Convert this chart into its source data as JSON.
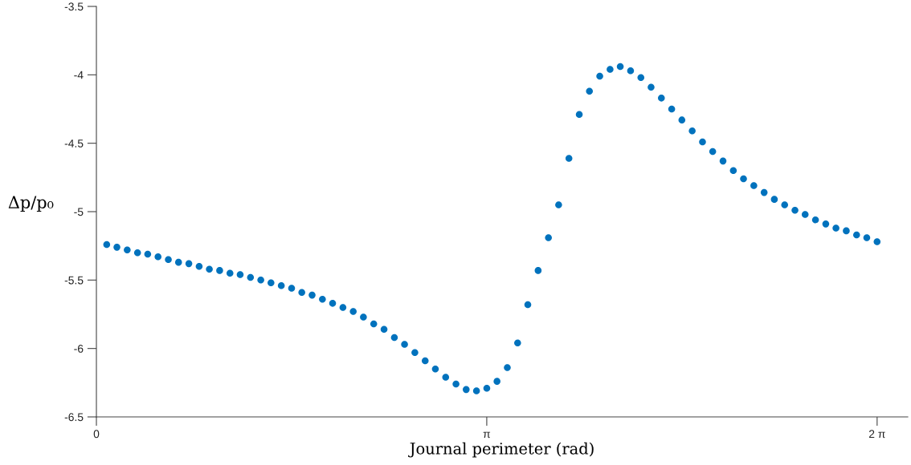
{
  "chart_data": {
    "type": "scatter",
    "xlabel": "Journal perimeter (rad)",
    "ylabel": "Δp/p₀",
    "x": [
      0.083,
      0.165,
      0.248,
      0.331,
      0.413,
      0.496,
      0.579,
      0.661,
      0.744,
      0.827,
      0.909,
      0.992,
      1.075,
      1.157,
      1.24,
      1.323,
      1.405,
      1.488,
      1.571,
      1.653,
      1.736,
      1.819,
      1.901,
      1.984,
      2.067,
      2.149,
      2.232,
      2.315,
      2.398,
      2.48,
      2.563,
      2.646,
      2.728,
      2.811,
      2.894,
      2.976,
      3.059,
      3.142,
      3.224,
      3.307,
      3.39,
      3.472,
      3.555,
      3.638,
      3.72,
      3.803,
      3.886,
      3.968,
      4.051,
      4.134,
      4.216,
      4.299,
      4.382,
      4.464,
      4.547,
      4.63,
      4.712,
      4.795,
      4.878,
      4.96,
      5.043,
      5.126,
      5.208,
      5.291,
      5.374,
      5.456,
      5.539,
      5.622,
      5.704,
      5.787,
      5.87,
      5.952,
      6.035,
      6.118,
      6.2,
      6.283
    ],
    "series": [
      {
        "color": "#0072bd",
        "values": [
          -5.24,
          -5.26,
          -5.28,
          -5.3,
          -5.31,
          -5.33,
          -5.35,
          -5.37,
          -5.38,
          -5.4,
          -5.42,
          -5.43,
          -5.45,
          -5.46,
          -5.48,
          -5.5,
          -5.52,
          -5.54,
          -5.56,
          -5.59,
          -5.61,
          -5.64,
          -5.67,
          -5.7,
          -5.73,
          -5.77,
          -5.82,
          -5.86,
          -5.92,
          -5.97,
          -6.03,
          -6.09,
          -6.15,
          -6.21,
          -6.26,
          -6.3,
          -6.31,
          -6.29,
          -6.24,
          -6.14,
          -5.96,
          -5.68,
          -5.43,
          -5.19,
          -4.95,
          -4.61,
          -4.29,
          -4.12,
          -4.01,
          -3.96,
          -3.94,
          -3.97,
          -4.02,
          -4.09,
          -4.17,
          -4.25,
          -4.33,
          -4.41,
          -4.49,
          -4.56,
          -4.63,
          -4.7,
          -4.76,
          -4.81,
          -4.86,
          -4.91,
          -4.95,
          -4.99,
          -5.02,
          -5.06,
          -5.09,
          -5.12,
          -5.14,
          -5.17,
          -5.19,
          -5.22
        ]
      }
    ],
    "marker": "circle",
    "xlim": [
      0,
      6.53
    ],
    "xticks": [
      0,
      {
        "value": 3.14159,
        "label": "π"
      },
      {
        "value": 6.28319,
        "label": "2 π"
      }
    ],
    "ylim": [
      -6.5,
      -3.5
    ],
    "yticks": [
      -6.5,
      -6,
      -5.5,
      -5,
      -4.5,
      -4,
      -3.5
    ]
  }
}
